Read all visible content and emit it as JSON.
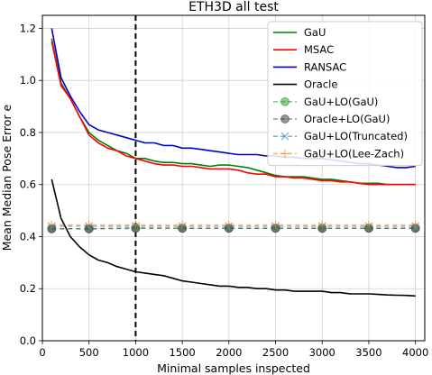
{
  "chart_data": {
    "type": "line",
    "title": "ETH3D all test",
    "xlabel": "Minimal samples inspected",
    "ylabel": "Mean Median Pose Error e",
    "xlim": [
      0,
      4100
    ],
    "ylim": [
      0,
      1.25
    ],
    "xticks": [
      0,
      500,
      1000,
      1500,
      2000,
      2500,
      3000,
      3500,
      4000
    ],
    "yticks": [
      0.0,
      0.2,
      0.4,
      0.6,
      0.8,
      1.0,
      1.2
    ],
    "grid": true,
    "legend_position": "top-right",
    "vline": {
      "x": 1000,
      "style": "dashed",
      "color": "#000000"
    },
    "series": [
      {
        "name": "GaU",
        "color": "#008000",
        "style": "solid",
        "marker": null,
        "x": [
          100,
          200,
          300,
          400,
          500,
          600,
          700,
          800,
          900,
          1000,
          1100,
          1200,
          1300,
          1400,
          1500,
          1600,
          1700,
          1800,
          1900,
          2000,
          2100,
          2200,
          2300,
          2400,
          2500,
          2600,
          2700,
          2800,
          2900,
          3000,
          3100,
          3200,
          3300,
          3400,
          3500,
          3600,
          3700,
          3800,
          3900,
          4000
        ],
        "y": [
          1.16,
          0.99,
          0.93,
          0.86,
          0.8,
          0.77,
          0.75,
          0.73,
          0.72,
          0.7,
          0.7,
          0.69,
          0.685,
          0.685,
          0.68,
          0.68,
          0.675,
          0.67,
          0.675,
          0.675,
          0.67,
          0.665,
          0.655,
          0.645,
          0.635,
          0.63,
          0.63,
          0.63,
          0.625,
          0.62,
          0.62,
          0.615,
          0.61,
          0.605,
          0.605,
          0.605,
          0.6,
          0.6,
          0.6,
          0.6
        ]
      },
      {
        "name": "MSAC",
        "color": "#ff0000",
        "style": "solid",
        "marker": null,
        "x": [
          100,
          200,
          300,
          400,
          500,
          600,
          700,
          800,
          900,
          1000,
          1100,
          1200,
          1300,
          1400,
          1500,
          1600,
          1700,
          1800,
          1900,
          2000,
          2100,
          2200,
          2300,
          2400,
          2500,
          2600,
          2700,
          2800,
          2900,
          3000,
          3100,
          3200,
          3300,
          3400,
          3500,
          3600,
          3700,
          3800,
          3900,
          4000
        ],
        "y": [
          1.15,
          0.98,
          0.93,
          0.86,
          0.79,
          0.76,
          0.74,
          0.73,
          0.71,
          0.7,
          0.69,
          0.68,
          0.675,
          0.675,
          0.67,
          0.67,
          0.665,
          0.66,
          0.66,
          0.66,
          0.655,
          0.645,
          0.64,
          0.64,
          0.63,
          0.63,
          0.625,
          0.625,
          0.62,
          0.615,
          0.615,
          0.61,
          0.61,
          0.605,
          0.6,
          0.6,
          0.6,
          0.6,
          0.6,
          0.6
        ]
      },
      {
        "name": "RANSAC",
        "color": "#0000cd",
        "style": "solid",
        "marker": null,
        "x": [
          100,
          200,
          300,
          400,
          500,
          600,
          700,
          800,
          900,
          1000,
          1100,
          1200,
          1300,
          1400,
          1500,
          1600,
          1700,
          1800,
          1900,
          2000,
          2100,
          2200,
          2300,
          2400,
          2500,
          2600,
          2700,
          2800,
          2900,
          3000,
          3100,
          3200,
          3300,
          3400,
          3500,
          3600,
          3700,
          3800,
          3900,
          4000
        ],
        "y": [
          1.2,
          1.01,
          0.94,
          0.88,
          0.83,
          0.81,
          0.8,
          0.79,
          0.78,
          0.77,
          0.76,
          0.76,
          0.75,
          0.75,
          0.74,
          0.74,
          0.735,
          0.73,
          0.725,
          0.72,
          0.715,
          0.715,
          0.715,
          0.71,
          0.71,
          0.705,
          0.705,
          0.7,
          0.7,
          0.7,
          0.695,
          0.69,
          0.685,
          0.68,
          0.68,
          0.675,
          0.67,
          0.665,
          0.665,
          0.67
        ]
      },
      {
        "name": "Oracle",
        "color": "#000000",
        "style": "solid",
        "marker": null,
        "x": [
          100,
          200,
          300,
          400,
          500,
          600,
          700,
          800,
          900,
          1000,
          1100,
          1200,
          1300,
          1400,
          1500,
          1600,
          1700,
          1800,
          1900,
          2000,
          2100,
          2200,
          2300,
          2400,
          2500,
          2600,
          2700,
          2800,
          2900,
          3000,
          3100,
          3200,
          3300,
          3400,
          3500,
          3600,
          3700,
          3800,
          3900,
          4000
        ],
        "y": [
          0.62,
          0.47,
          0.4,
          0.36,
          0.33,
          0.31,
          0.3,
          0.285,
          0.275,
          0.265,
          0.26,
          0.255,
          0.25,
          0.24,
          0.23,
          0.225,
          0.22,
          0.215,
          0.21,
          0.21,
          0.205,
          0.205,
          0.2,
          0.2,
          0.195,
          0.195,
          0.19,
          0.19,
          0.19,
          0.19,
          0.185,
          0.185,
          0.18,
          0.18,
          0.18,
          0.178,
          0.176,
          0.175,
          0.174,
          0.172
        ]
      },
      {
        "name": "GaU+LO(GaU)",
        "color": "#2ca02c",
        "style": "dashed",
        "marker": "circle",
        "x": [
          100,
          500,
          1000,
          1500,
          2000,
          2500,
          3000,
          3500,
          4000
        ],
        "y": [
          0.43,
          0.43,
          0.433,
          0.432,
          0.432,
          0.432,
          0.432,
          0.432,
          0.432
        ]
      },
      {
        "name": "Oracle+LO(GaU)",
        "color": "#404040",
        "style": "dashed",
        "marker": "circle",
        "x": [
          100,
          500,
          1000,
          1500,
          2000,
          2500,
          3000,
          3500,
          4000
        ],
        "y": [
          0.43,
          0.43,
          0.432,
          0.432,
          0.432,
          0.432,
          0.432,
          0.432,
          0.432
        ]
      },
      {
        "name": "GaU+LO(Truncated)",
        "color": "#1f77b4",
        "style": "dashed",
        "marker": "x",
        "x": [
          100,
          500,
          1000,
          1500,
          2000,
          2500,
          3000,
          3500,
          4000
        ],
        "y": [
          0.44,
          0.44,
          0.44,
          0.44,
          0.44,
          0.44,
          0.44,
          0.44,
          0.44
        ]
      },
      {
        "name": "GaU+LO(Lee-Zach)",
        "color": "#ff7f0e",
        "style": "dashed",
        "marker": "plus",
        "x": [
          100,
          500,
          1000,
          1500,
          2000,
          2500,
          3000,
          3500,
          4000
        ],
        "y": [
          0.445,
          0.445,
          0.445,
          0.445,
          0.445,
          0.445,
          0.445,
          0.445,
          0.445
        ]
      }
    ]
  }
}
